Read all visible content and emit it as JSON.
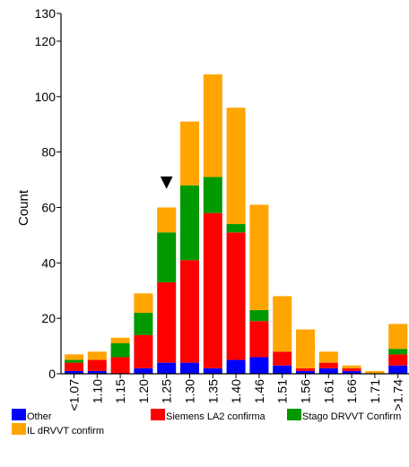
{
  "chart_data": {
    "type": "bar",
    "stacked": true,
    "title": "",
    "xlabel": "",
    "ylabel": "Count",
    "ylim": [
      0,
      130
    ],
    "yticks": [
      0,
      20,
      40,
      60,
      80,
      100,
      120,
      130
    ],
    "grid": false,
    "categories": [
      "<1.07",
      "1.10",
      "1.15",
      "1.20",
      "1.25",
      "1.30",
      "1.35",
      "1.40",
      "1.46",
      "1.51",
      "1.56",
      "1.61",
      "1.66",
      "1.71",
      ">1.74"
    ],
    "series": [
      {
        "name": "Other",
        "color": "#0000ff",
        "values": [
          1,
          1,
          0,
          2,
          4,
          4,
          2,
          5,
          6,
          3,
          1,
          2,
          1,
          0,
          3
        ]
      },
      {
        "name": "Siemens LA2 confirma",
        "color": "#ff0000",
        "values": [
          3,
          4,
          6,
          12,
          29,
          37,
          56,
          46,
          13,
          5,
          1,
          2,
          1,
          0,
          4
        ]
      },
      {
        "name": "Stago DRVVT Confirm",
        "color": "#009900",
        "values": [
          1,
          0,
          5,
          8,
          18,
          27,
          13,
          3,
          4,
          0,
          0,
          0,
          0,
          0,
          2
        ]
      },
      {
        "name": "IL dRVVT confirm",
        "color": "#ffa500",
        "values": [
          2,
          3,
          2,
          7,
          9,
          23,
          37,
          42,
          38,
          20,
          14,
          4,
          1,
          1,
          9
        ]
      }
    ],
    "marker": {
      "symbol": "▼",
      "category": "1.25",
      "value": 70
    },
    "legend_position": "bottom"
  }
}
